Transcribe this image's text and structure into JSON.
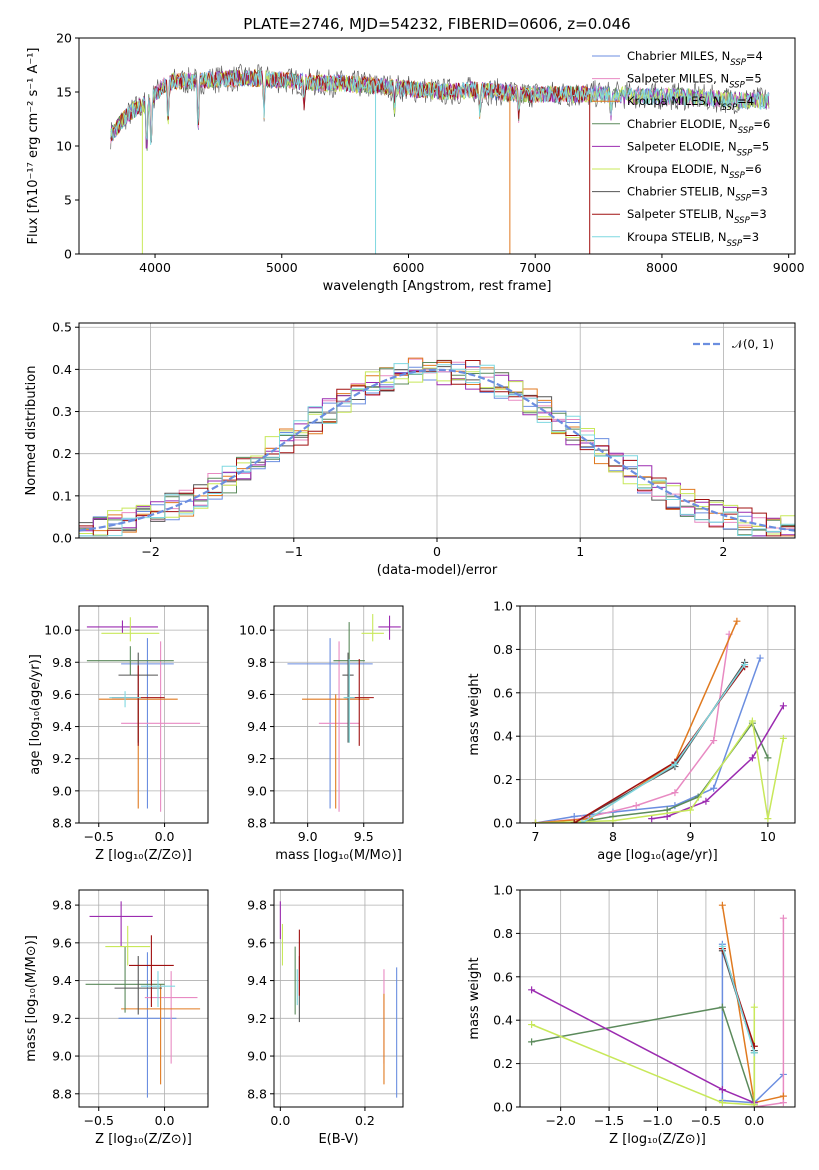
{
  "title": "PLATE=2746, MJD=54232, FIBERID=0606, z=0.046",
  "colors": [
    "#6b8ee0",
    "#e88ac2",
    "#e07a20",
    "#5b8a5b",
    "#9b2bb0",
    "#c8e85a",
    "#555555",
    "#a01010",
    "#7fd8e0"
  ],
  "chart_data": [
    {
      "id": "spectrum",
      "type": "line",
      "xlabel": "wavelength [Angstrom, rest frame]",
      "ylabel": "Flux [fλ10⁻¹⁷ erg cm⁻² s⁻¹ A⁻¹]",
      "xlim": [
        3400,
        9050
      ],
      "ylim": [
        0,
        20
      ],
      "xticks": [
        4000,
        5000,
        6000,
        7000,
        8000,
        9000
      ],
      "yticks": [
        0,
        5,
        10,
        15,
        20
      ],
      "legend_position": "right",
      "series": [
        {
          "name": "Chabrier MILES, N",
          "sub": "SSP",
          "suffix": "=4"
        },
        {
          "name": "Salpeter MILES, N",
          "sub": "SSP",
          "suffix": "=5"
        },
        {
          "name": "Kroupa MILES, N",
          "sub": "SSP",
          "suffix": "=4"
        },
        {
          "name": "Chabrier ELODIE, N",
          "sub": "SSP",
          "suffix": "=6"
        },
        {
          "name": "Salpeter ELODIE, N",
          "sub": "SSP",
          "suffix": "=5"
        },
        {
          "name": "Kroupa ELODIE, N",
          "sub": "SSP",
          "suffix": "=6"
        },
        {
          "name": "Chabrier STELIB, N",
          "sub": "SSP",
          "suffix": "=3"
        },
        {
          "name": "Salpeter STELIB, N",
          "sub": "SSP",
          "suffix": "=3"
        },
        {
          "name": "Kroupa STELIB, N",
          "sub": "SSP",
          "suffix": "=3"
        }
      ],
      "approx_flux": {
        "x": [
          3650,
          3750,
          3850,
          3950,
          4050,
          4150,
          4300,
          4500,
          4700,
          4900,
          5100,
          5300,
          5500,
          5700,
          5900,
          6100,
          6300,
          6500,
          6700,
          6900,
          7100,
          7300,
          7500,
          7700,
          7900,
          8100,
          8300,
          8500,
          8700,
          8850
        ],
        "y": [
          11,
          12.5,
          13.5,
          14,
          15.5,
          16,
          16,
          16.2,
          16.3,
          16.2,
          16,
          15.8,
          15.8,
          15.6,
          15.4,
          15.2,
          15,
          15.2,
          15,
          14.8,
          14.8,
          14.8,
          14.8,
          14.7,
          14.6,
          14.6,
          14.5,
          14.3,
          14.2,
          14.2
        ]
      }
    },
    {
      "id": "residuals",
      "type": "line",
      "xlabel": "(data-model)/error",
      "ylabel": "Normed distribution",
      "xlim": [
        -2.5,
        2.5
      ],
      "ylim": [
        0,
        0.51
      ],
      "xticks": [
        -2,
        -1,
        0,
        1,
        2
      ],
      "yticks": [
        0.0,
        0.1,
        0.2,
        0.3,
        0.4,
        0.5
      ],
      "legend": "𝒩(0, 1)",
      "gaussian": {
        "mu": 0,
        "sigma": 1
      }
    },
    {
      "id": "age-vs-Z",
      "type": "scatter",
      "xlabel": "Z [log₁₀(Z/Z⊙)]",
      "ylabel": "age  [log₁₀(age/yr)]",
      "xlim": [
        -0.65,
        0.33
      ],
      "ylim": [
        8.8,
        10.15
      ],
      "xticks": [
        -0.5,
        0.0
      ],
      "yticks": [
        8.8,
        9.0,
        9.2,
        9.4,
        9.6,
        9.8,
        10.0
      ],
      "points": [
        {
          "x": -0.13,
          "y": 9.79,
          "xerr": 0.2,
          "ylo": 8.89,
          "yhi": 9.95
        },
        {
          "x": -0.03,
          "y": 9.42,
          "xerr": 0.3,
          "ylo": 8.87,
          "yhi": 9.93
        },
        {
          "x": -0.2,
          "y": 9.57,
          "xerr": 0.3,
          "ylo": 8.89,
          "yhi": 9.6
        },
        {
          "x": -0.26,
          "y": 9.81,
          "xerr": 0.33,
          "ylo": 9.72,
          "yhi": 9.9
        },
        {
          "x": -0.32,
          "y": 10.02,
          "xerr": 0.27,
          "ylo": 9.98,
          "yhi": 10.06
        },
        {
          "x": -0.26,
          "y": 9.98,
          "xerr": 0.22,
          "ylo": 9.93,
          "yhi": 10.08
        },
        {
          "x": -0.2,
          "y": 9.72,
          "xerr": 0.15,
          "ylo": 9.3,
          "yhi": 9.86
        },
        {
          "x": -0.2,
          "y": 9.58,
          "xerr": 0.2,
          "ylo": 9.28,
          "yhi": 9.78
        },
        {
          "x": -0.3,
          "y": 9.58,
          "xerr": 0.12,
          "ylo": 9.52,
          "yhi": 9.62
        }
      ]
    },
    {
      "id": "age-vs-mass",
      "type": "scatter",
      "xlabel": "mass [log₁₀(M/M⊙)]",
      "ylabel": "",
      "xlim": [
        8.7,
        9.85
      ],
      "ylim": [
        8.8,
        10.15
      ],
      "xticks": [
        9.0,
        9.5
      ],
      "yticks": [
        8.8,
        9.0,
        9.2,
        9.4,
        9.6,
        9.8,
        10.0
      ],
      "points": [
        {
          "x": 9.2,
          "y": 9.79,
          "xerr": 0.38,
          "ylo": 8.89,
          "yhi": 9.95
        },
        {
          "x": 9.28,
          "y": 9.42,
          "xerr": 0.18,
          "ylo": 8.87,
          "yhi": 9.93
        },
        {
          "x": 9.25,
          "y": 9.57,
          "xerr": 0.3,
          "ylo": 8.89,
          "yhi": 9.6
        },
        {
          "x": 9.37,
          "y": 9.81,
          "xerr": 0.14,
          "ylo": 9.3,
          "yhi": 10.05
        },
        {
          "x": 9.73,
          "y": 10.02,
          "xerr": 0.1,
          "ylo": 9.94,
          "yhi": 10.09
        },
        {
          "x": 9.58,
          "y": 9.98,
          "xerr": 0.1,
          "ylo": 9.93,
          "yhi": 10.1
        },
        {
          "x": 9.36,
          "y": 9.72,
          "xerr": 0.05,
          "ylo": 9.3,
          "yhi": 9.86
        },
        {
          "x": 9.46,
          "y": 9.58,
          "xerr": 0.13,
          "ylo": 9.28,
          "yhi": 9.82
        },
        {
          "x": 9.37,
          "y": 9.58,
          "xerr": 0.05,
          "ylo": 9.3,
          "yhi": 9.82
        }
      ]
    },
    {
      "id": "weight-vs-age",
      "type": "line",
      "xlabel": "age  [log₁₀(age/yr)]",
      "ylabel": "mass weight",
      "xlim": [
        6.8,
        10.35
      ],
      "ylim": [
        0,
        1.0
      ],
      "xticks": [
        7,
        8,
        9,
        10
      ],
      "yticks": [
        0.0,
        0.2,
        0.4,
        0.6,
        0.8,
        1.0
      ],
      "series": [
        {
          "x": [
            7.0,
            7.5,
            8.0,
            8.8,
            9.3,
            9.9
          ],
          "y": [
            0.0,
            0.03,
            0.05,
            0.08,
            0.16,
            0.76
          ]
        },
        {
          "x": [
            7.0,
            7.6,
            8.3,
            8.8,
            9.3,
            9.5
          ],
          "y": [
            0.0,
            0.02,
            0.08,
            0.14,
            0.38,
            0.87
          ]
        },
        {
          "x": [
            7.0,
            7.7,
            8.8,
            9.6
          ],
          "y": [
            0.0,
            0.02,
            0.28,
            0.93
          ]
        },
        {
          "x": [
            7.5,
            8.0,
            8.7,
            9.1,
            9.8,
            10.0
          ],
          "y": [
            0.0,
            0.03,
            0.06,
            0.12,
            0.46,
            0.3
          ]
        },
        {
          "x": [
            8.5,
            8.7,
            9.2,
            9.8,
            10.2
          ],
          "y": [
            0.02,
            0.03,
            0.1,
            0.3,
            0.54
          ]
        },
        {
          "x": [
            7.0,
            8.0,
            9.0,
            9.8,
            10.0,
            10.2
          ],
          "y": [
            0.0,
            0.01,
            0.06,
            0.47,
            0.02,
            0.39
          ]
        },
        {
          "x": [
            7.5,
            8.8,
            9.7
          ],
          "y": [
            0.0,
            0.26,
            0.74
          ]
        },
        {
          "x": [
            7.5,
            8.8,
            9.7
          ],
          "y": [
            0.0,
            0.28,
            0.72
          ]
        },
        {
          "x": [
            7.6,
            8.8,
            9.7
          ],
          "y": [
            0.0,
            0.27,
            0.73
          ]
        }
      ]
    },
    {
      "id": "mass-vs-Z",
      "type": "scatter",
      "xlabel": "Z [log₁₀(Z/Z⊙)]",
      "ylabel": "mass [log₁₀(M/M⊙)]",
      "xlim": [
        -0.65,
        0.33
      ],
      "ylim": [
        8.73,
        9.88
      ],
      "xticks": [
        -0.5,
        0.0
      ],
      "yticks": [
        8.8,
        9.0,
        9.2,
        9.4,
        9.6,
        9.8
      ],
      "points": [
        {
          "x": -0.13,
          "y": 9.2,
          "xerr": 0.22,
          "ylo": 8.78,
          "yhi": 9.55
        },
        {
          "x": 0.05,
          "y": 9.31,
          "xerr": 0.2,
          "ylo": 8.96,
          "yhi": 9.45
        },
        {
          "x": -0.03,
          "y": 9.25,
          "xerr": 0.3,
          "ylo": 8.85,
          "yhi": 9.38
        },
        {
          "x": -0.3,
          "y": 9.38,
          "xerr": 0.3,
          "ylo": 9.23,
          "yhi": 9.58
        },
        {
          "x": -0.33,
          "y": 9.74,
          "xerr": 0.24,
          "ylo": 9.58,
          "yhi": 9.82
        },
        {
          "x": -0.28,
          "y": 9.58,
          "xerr": 0.17,
          "ylo": 9.48,
          "yhi": 9.69
        },
        {
          "x": -0.2,
          "y": 9.36,
          "xerr": 0.18,
          "ylo": 9.22,
          "yhi": 9.53
        },
        {
          "x": -0.1,
          "y": 9.48,
          "xerr": 0.17,
          "ylo": 9.26,
          "yhi": 9.64
        },
        {
          "x": -0.05,
          "y": 9.37,
          "xerr": 0.13,
          "ylo": 9.26,
          "yhi": 9.45
        }
      ]
    },
    {
      "id": "mass-vs-EBV",
      "type": "scatter",
      "xlabel": "E(B-V)",
      "ylabel": "",
      "xlim": [
        -0.015,
        0.29
      ],
      "ylim": [
        8.73,
        9.88
      ],
      "xticks": [
        0.0,
        0.2
      ],
      "yticks": [
        8.8,
        9.0,
        9.2,
        9.4,
        9.6,
        9.8
      ],
      "points": [
        {
          "x": 0.275,
          "y": 9.2,
          "xerr": 0,
          "ylo": 8.78,
          "yhi": 9.47
        },
        {
          "x": 0.245,
          "y": 9.31,
          "xerr": 0,
          "ylo": 8.96,
          "yhi": 9.46
        },
        {
          "x": 0.245,
          "y": 9.25,
          "xerr": 0,
          "ylo": 8.85,
          "yhi": 9.33
        },
        {
          "x": 0.035,
          "y": 9.38,
          "xerr": 0,
          "ylo": 9.22,
          "yhi": 9.58
        },
        {
          "x": 0.0,
          "y": 9.74,
          "xerr": 0,
          "ylo": 9.62,
          "yhi": 9.82
        },
        {
          "x": 0.005,
          "y": 9.58,
          "xerr": 0,
          "ylo": 9.48,
          "yhi": 9.7
        },
        {
          "x": 0.045,
          "y": 9.36,
          "xerr": 0,
          "ylo": 9.18,
          "yhi": 9.53
        },
        {
          "x": 0.045,
          "y": 9.48,
          "xerr": 0,
          "ylo": 9.32,
          "yhi": 9.67
        },
        {
          "x": 0.04,
          "y": 9.37,
          "xerr": 0,
          "ylo": 9.27,
          "yhi": 9.46
        }
      ]
    },
    {
      "id": "weight-vs-Z",
      "type": "line",
      "xlabel": "Z [log₁₀(Z/Z⊙)]",
      "ylabel": "mass weight",
      "xlim": [
        -2.42,
        0.42
      ],
      "ylim": [
        0,
        1.0
      ],
      "xticks": [
        -2.0,
        -1.5,
        -1.0,
        -0.5,
        0.0
      ],
      "yticks": [
        0.0,
        0.2,
        0.4,
        0.6,
        0.8,
        1.0
      ],
      "series": [
        {
          "x": [
            -0.33,
            -0.33,
            0.0,
            0.3
          ],
          "y": [
            0.75,
            0.03,
            0.02,
            0.15
          ]
        },
        {
          "x": [
            0.0,
            0.3,
            0.3
          ],
          "y": [
            0.0,
            0.02,
            0.87
          ]
        },
        {
          "x": [
            -0.33,
            0.0,
            0.3
          ],
          "y": [
            0.93,
            0.02,
            0.05
          ]
        },
        {
          "x": [
            -2.3,
            -0.33,
            0.0,
            0.0
          ],
          "y": [
            0.3,
            0.46,
            0.01,
            0.25
          ]
        },
        {
          "x": [
            -2.3,
            -0.33,
            0.0
          ],
          "y": [
            0.54,
            0.08,
            0.02
          ]
        },
        {
          "x": [
            -2.3,
            -0.33,
            0.0,
            0.0
          ],
          "y": [
            0.38,
            0.02,
            0.01,
            0.46
          ]
        },
        {
          "x": [
            -0.33,
            0.0
          ],
          "y": [
            0.72,
            0.26
          ]
        },
        {
          "x": [
            -0.33,
            0.0
          ],
          "y": [
            0.73,
            0.28
          ]
        },
        {
          "x": [
            -0.33,
            0.0
          ],
          "y": [
            0.74,
            0.25
          ]
        }
      ]
    }
  ]
}
